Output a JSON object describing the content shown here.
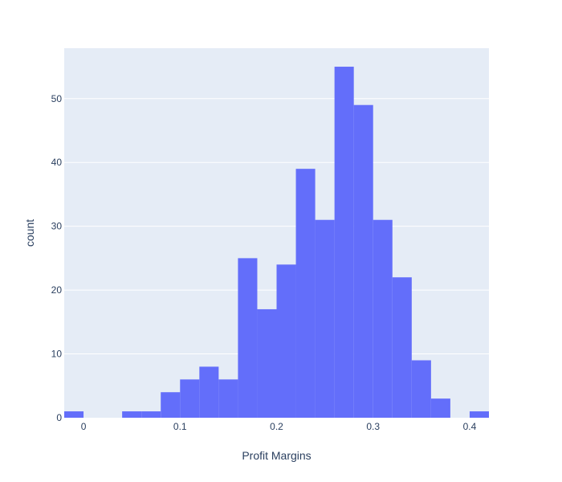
{
  "colors": {
    "plot_bg": "#e5ecf6",
    "grid": "#ffffff",
    "bar": "#636efa",
    "text": "#2a3f5f"
  },
  "chart_data": {
    "type": "bar",
    "subtype": "histogram",
    "title": "",
    "xlabel": "Profit Margins",
    "ylabel": "count",
    "xlim": [
      -0.02,
      0.42
    ],
    "ylim": [
      0,
      57.9
    ],
    "bin_width": 0.02,
    "x_ticks": [
      {
        "value": 0,
        "label": "0"
      },
      {
        "value": 0.1,
        "label": "0.1"
      },
      {
        "value": 0.2,
        "label": "0.2"
      },
      {
        "value": 0.3,
        "label": "0.3"
      },
      {
        "value": 0.4,
        "label": "0.4"
      }
    ],
    "y_ticks": [
      {
        "value": 0,
        "label": "0"
      },
      {
        "value": 10,
        "label": "10"
      },
      {
        "value": 20,
        "label": "20"
      },
      {
        "value": 30,
        "label": "30"
      },
      {
        "value": 40,
        "label": "40"
      },
      {
        "value": 50,
        "label": "50"
      }
    ],
    "grid": true,
    "bins": [
      {
        "start": -0.02,
        "end": 0.0,
        "count": 1
      },
      {
        "start": 0.0,
        "end": 0.02,
        "count": 0
      },
      {
        "start": 0.02,
        "end": 0.04,
        "count": 0
      },
      {
        "start": 0.04,
        "end": 0.06,
        "count": 1
      },
      {
        "start": 0.06,
        "end": 0.08,
        "count": 1
      },
      {
        "start": 0.08,
        "end": 0.1,
        "count": 4
      },
      {
        "start": 0.1,
        "end": 0.12,
        "count": 6
      },
      {
        "start": 0.12,
        "end": 0.14,
        "count": 8
      },
      {
        "start": 0.14,
        "end": 0.16,
        "count": 6
      },
      {
        "start": 0.16,
        "end": 0.18,
        "count": 25
      },
      {
        "start": 0.18,
        "end": 0.2,
        "count": 17
      },
      {
        "start": 0.2,
        "end": 0.22,
        "count": 24
      },
      {
        "start": 0.22,
        "end": 0.24,
        "count": 39
      },
      {
        "start": 0.24,
        "end": 0.26,
        "count": 31
      },
      {
        "start": 0.26,
        "end": 0.28,
        "count": 55
      },
      {
        "start": 0.28,
        "end": 0.3,
        "count": 49
      },
      {
        "start": 0.3,
        "end": 0.32,
        "count": 31
      },
      {
        "start": 0.32,
        "end": 0.34,
        "count": 22
      },
      {
        "start": 0.34,
        "end": 0.36,
        "count": 9
      },
      {
        "start": 0.36,
        "end": 0.38,
        "count": 3
      },
      {
        "start": 0.38,
        "end": 0.4,
        "count": 0
      },
      {
        "start": 0.4,
        "end": 0.42,
        "count": 1
      }
    ]
  }
}
